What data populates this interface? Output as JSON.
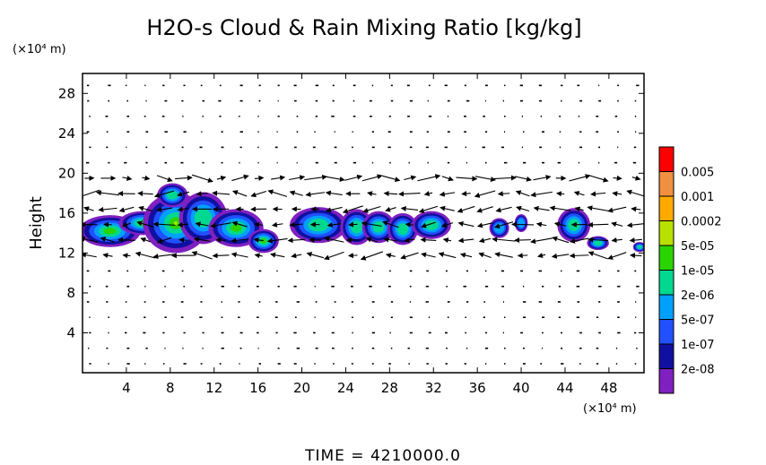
{
  "chart_data": {
    "type": "heatmap",
    "title": "H2O-s Cloud & Rain Mixing Ratio [kg/kg]",
    "ylabel": "Height",
    "y_unit": "(×10⁴ m)",
    "x_unit": "(×10⁴ m)",
    "xlim": [
      0,
      51.2
    ],
    "ylim": [
      0,
      30
    ],
    "x_ticks": [
      4,
      8,
      12,
      16,
      20,
      24,
      28,
      32,
      36,
      40,
      44,
      48
    ],
    "y_ticks": [
      4,
      8,
      12,
      16,
      20,
      24,
      28
    ],
    "time_label": "TIME  =  4210000.0",
    "grid": false,
    "legend": {
      "placement": "right",
      "levels": [
        "0.005",
        "0.001",
        "0.0002",
        "5e-05",
        "1e-05",
        "2e-06",
        "5e-07",
        "1e-07",
        "2e-08"
      ],
      "colors": [
        "#ff0000",
        "#f09040",
        "#ffaa00",
        "#b8e000",
        "#2ad400",
        "#00d890",
        "#00a0ff",
        "#2050ff",
        "#1010a0",
        "#8020c0"
      ]
    },
    "cloud_regions": [
      {
        "x": 2.5,
        "y": 14.2,
        "rx": 2.8,
        "ry": 1.6,
        "level": 4
      },
      {
        "x": 5.5,
        "y": 15.0,
        "rx": 2.2,
        "ry": 1.2,
        "level": 4
      },
      {
        "x": 8.5,
        "y": 15.0,
        "rx": 3.0,
        "ry": 3.0,
        "level": 3
      },
      {
        "x": 8.2,
        "y": 17.8,
        "rx": 1.4,
        "ry": 1.2,
        "level": 5
      },
      {
        "x": 11.0,
        "y": 15.5,
        "rx": 2.2,
        "ry": 2.6,
        "level": 5
      },
      {
        "x": 14.0,
        "y": 14.5,
        "rx": 2.5,
        "ry": 1.9,
        "level": 4
      },
      {
        "x": 16.5,
        "y": 13.2,
        "rx": 1.4,
        "ry": 1.2,
        "level": 4
      },
      {
        "x": 21.5,
        "y": 14.8,
        "rx": 2.6,
        "ry": 1.8,
        "level": 5
      },
      {
        "x": 25.0,
        "y": 14.6,
        "rx": 1.5,
        "ry": 1.8,
        "level": 5
      },
      {
        "x": 27.0,
        "y": 14.6,
        "rx": 1.5,
        "ry": 1.6,
        "level": 5
      },
      {
        "x": 29.2,
        "y": 14.4,
        "rx": 1.4,
        "ry": 1.6,
        "level": 5
      },
      {
        "x": 31.8,
        "y": 14.8,
        "rx": 1.8,
        "ry": 1.4,
        "level": 5
      },
      {
        "x": 38.0,
        "y": 14.5,
        "rx": 0.9,
        "ry": 1.0,
        "level": 6
      },
      {
        "x": 40.0,
        "y": 15.0,
        "rx": 0.6,
        "ry": 0.9,
        "level": 6
      },
      {
        "x": 44.8,
        "y": 14.8,
        "rx": 1.5,
        "ry": 1.7,
        "level": 5
      },
      {
        "x": 47.0,
        "y": 13.0,
        "rx": 1.0,
        "ry": 0.7,
        "level": 5
      },
      {
        "x": 50.8,
        "y": 12.6,
        "rx": 0.6,
        "ry": 0.5,
        "level": 5
      }
    ]
  }
}
